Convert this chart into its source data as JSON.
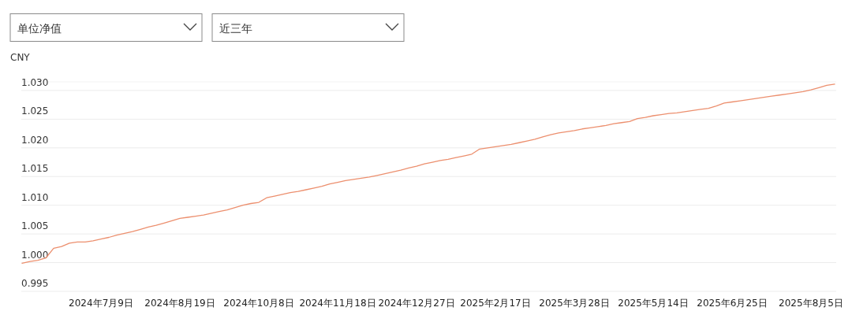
{
  "chart_data": {
    "type": "line",
    "ylabel": "CNY",
    "annotations": [
      "单位净值",
      "近三年"
    ],
    "categories": [
      null,
      null,
      null,
      null,
      null,
      null,
      null,
      null,
      null,
      null,
      "2024年7月9日",
      null,
      null,
      null,
      null,
      null,
      null,
      null,
      null,
      null,
      "2024年8月19日",
      null,
      null,
      null,
      null,
      null,
      null,
      null,
      null,
      null,
      "2024年10月8日",
      null,
      null,
      null,
      null,
      null,
      null,
      null,
      null,
      null,
      "2024年11月18日",
      null,
      null,
      null,
      null,
      null,
      null,
      null,
      null,
      null,
      "2024年12月27日",
      null,
      null,
      null,
      null,
      null,
      null,
      null,
      null,
      null,
      "2025年2月17日",
      null,
      null,
      null,
      null,
      null,
      null,
      null,
      null,
      null,
      "2025年3月28日",
      null,
      null,
      null,
      null,
      null,
      null,
      null,
      null,
      null,
      "2025年5月14日",
      null,
      null,
      null,
      null,
      null,
      null,
      null,
      null,
      null,
      "2025年6月25日",
      null,
      null,
      null,
      null,
      null,
      null,
      null,
      null,
      null,
      "2025年8月5日",
      null,
      null,
      null
    ],
    "values": [
      0.9999,
      1.0002,
      1.0004,
      1.0008,
      1.0025,
      1.0028,
      1.0034,
      1.0036,
      1.0036,
      1.0038,
      1.0041,
      1.0044,
      1.0048,
      1.0051,
      1.0054,
      1.0058,
      1.0062,
      1.0065,
      1.0069,
      1.0073,
      1.0077,
      1.0079,
      1.0081,
      1.0083,
      1.0086,
      1.0089,
      1.0092,
      1.0096,
      1.01,
      1.0103,
      1.0105,
      1.0113,
      1.0116,
      1.0119,
      1.0122,
      1.0124,
      1.0127,
      1.013,
      1.0133,
      1.0137,
      1.014,
      1.0143,
      1.0145,
      1.0147,
      1.0149,
      1.0152,
      1.0155,
      1.0158,
      1.0161,
      1.0165,
      1.0168,
      1.0172,
      1.0175,
      1.0178,
      1.018,
      1.0183,
      1.0186,
      1.0189,
      1.0198,
      1.02,
      1.0202,
      1.0204,
      1.0206,
      1.0209,
      1.0212,
      1.0215,
      1.0219,
      1.0223,
      1.0226,
      1.0228,
      1.023,
      1.0233,
      1.0235,
      1.0237,
      1.0239,
      1.0242,
      1.0244,
      1.0246,
      1.0251,
      1.0253,
      1.0256,
      1.0258,
      1.026,
      1.0261,
      1.0263,
      1.0265,
      1.0267,
      1.0269,
      1.0273,
      1.0278,
      1.028,
      1.0282,
      1.0284,
      1.0286,
      1.0288,
      1.029,
      1.0292,
      1.0294,
      1.0296,
      1.0298,
      1.0301,
      1.0305,
      1.0309,
      1.0311
    ],
    "color": "#ec8f6e",
    "ylim": [
      0.995,
      1.0315
    ],
    "yticks": [
      {
        "value": 0.995,
        "label": "0.995"
      },
      {
        "value": 1.0,
        "label": "1.000"
      },
      {
        "value": 1.005,
        "label": "1.005"
      },
      {
        "value": 1.01,
        "label": "1.010"
      },
      {
        "value": 1.015,
        "label": "1.015"
      },
      {
        "value": 1.02,
        "label": "1.020"
      },
      {
        "value": 1.025,
        "label": "1.025"
      },
      {
        "value": 1.03,
        "label": "1.030"
      }
    ],
    "grid": "y"
  }
}
